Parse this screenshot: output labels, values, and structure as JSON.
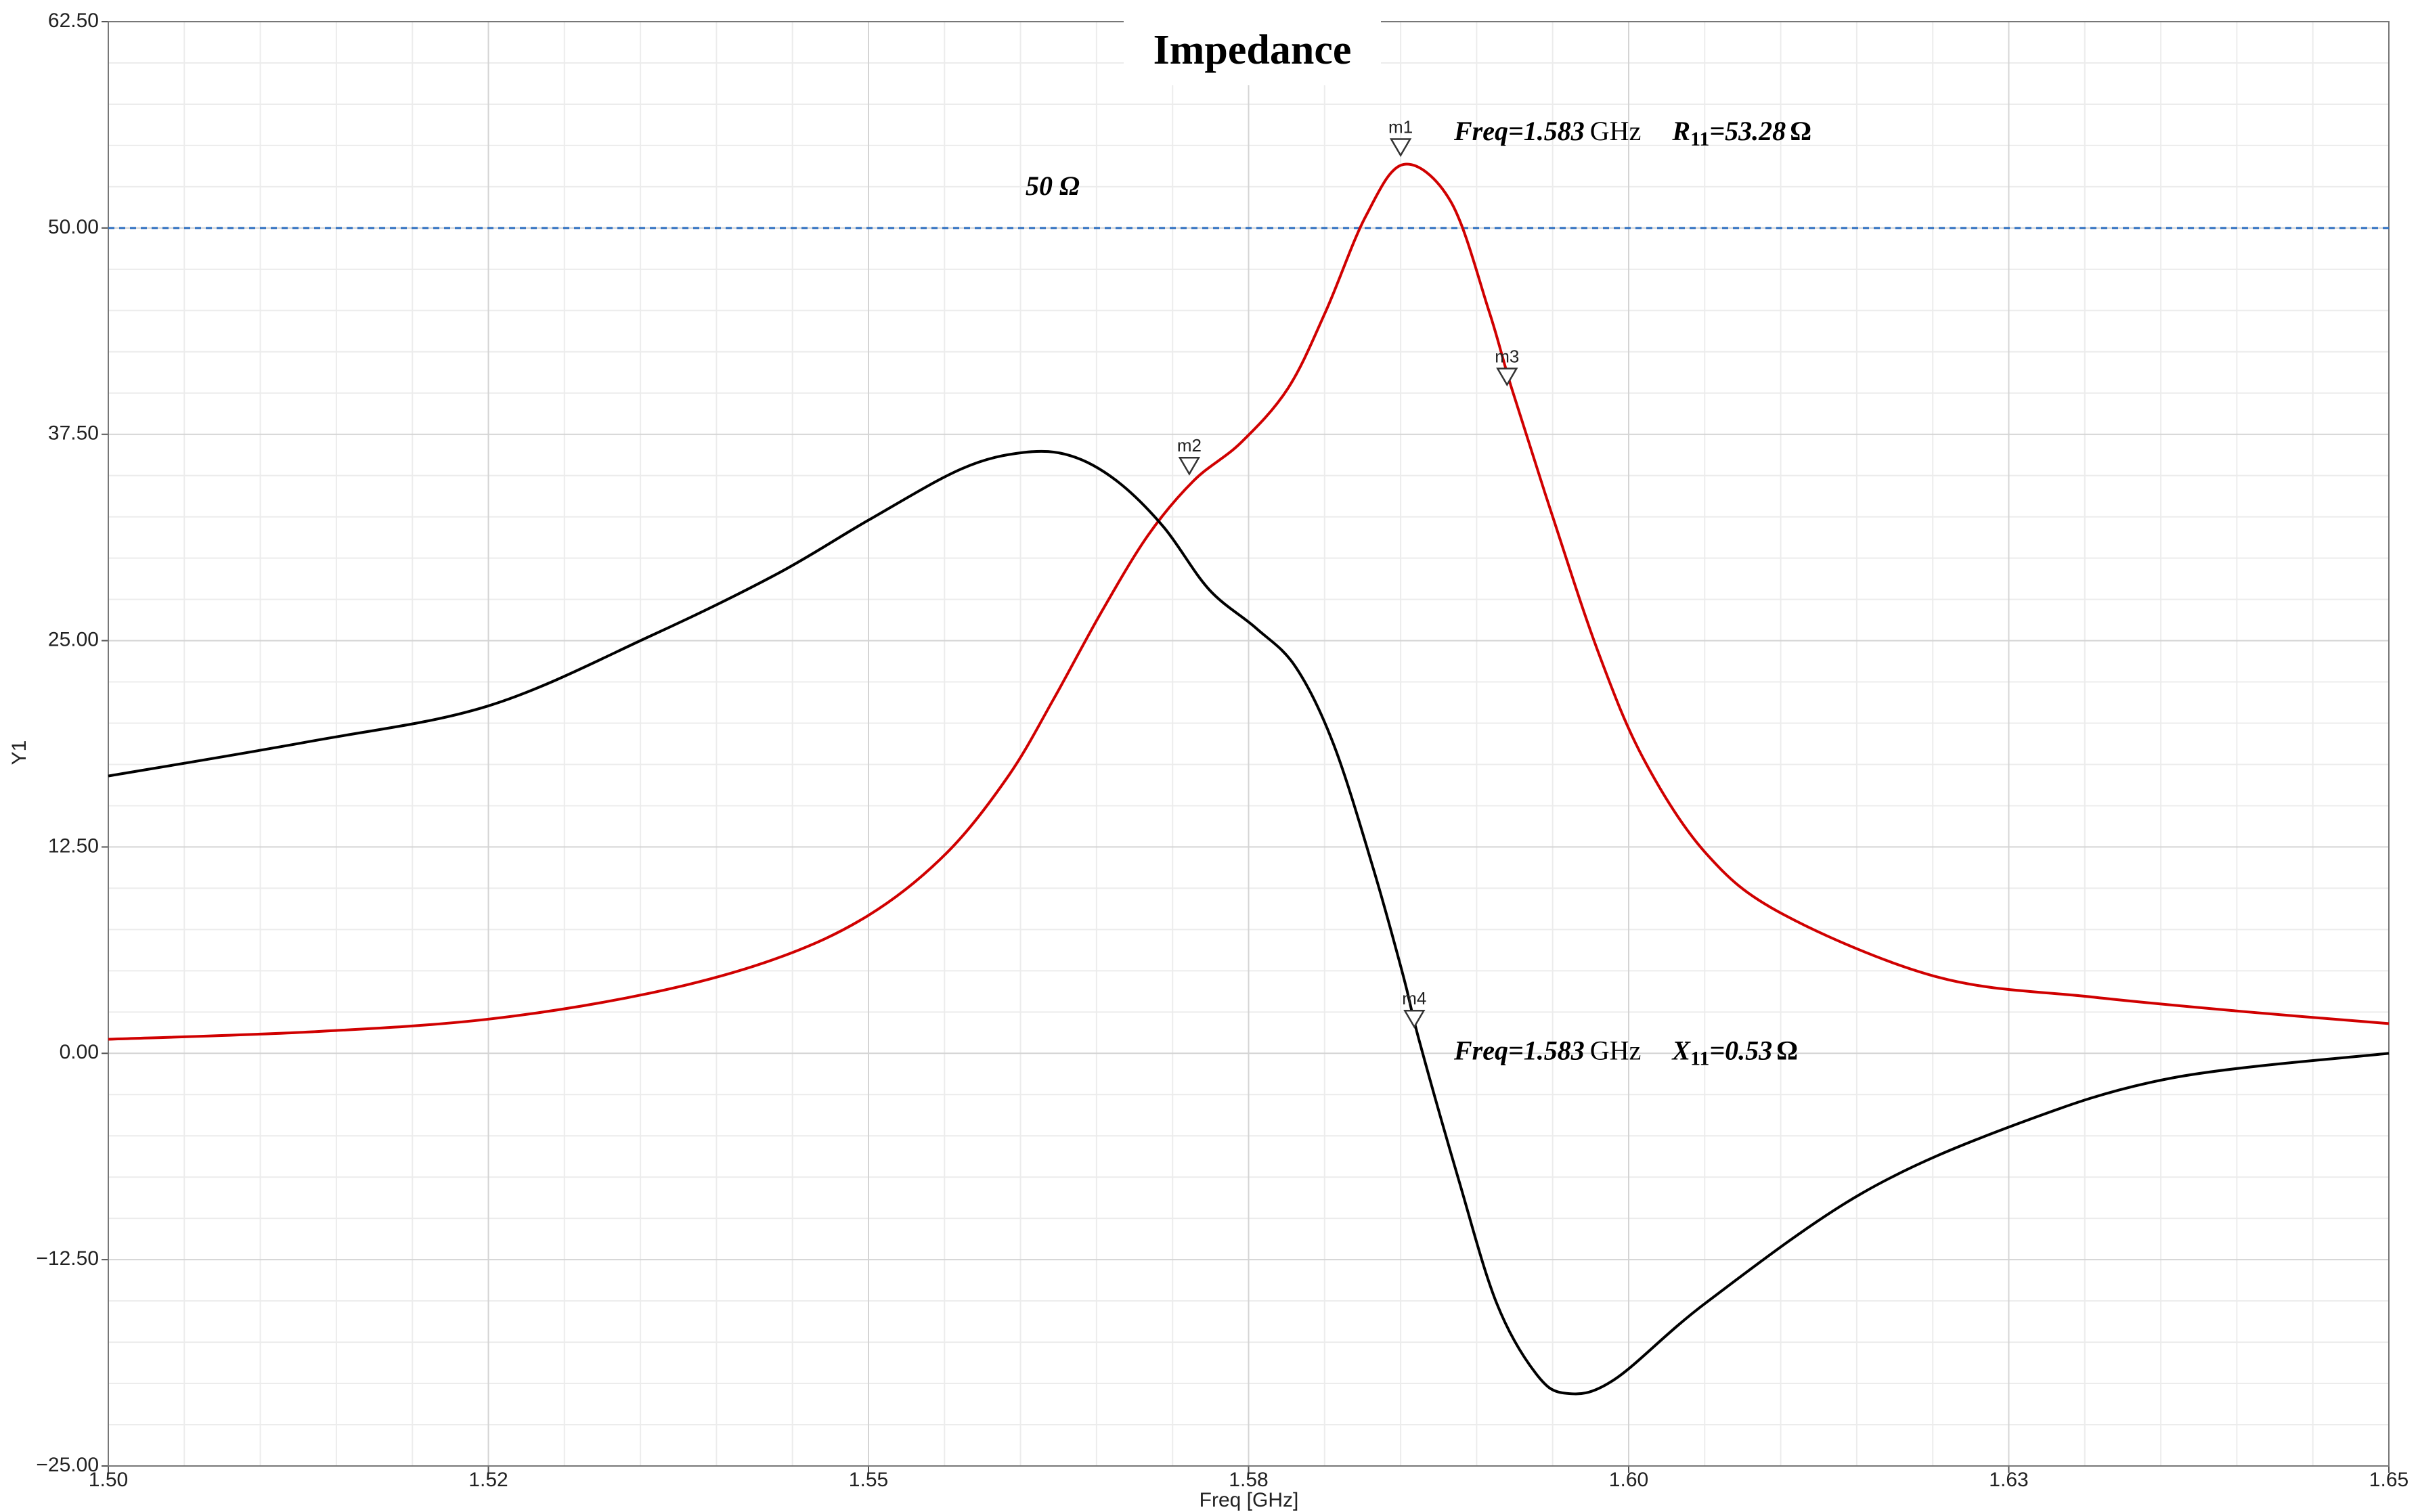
{
  "chart_data": {
    "type": "line",
    "title": "Impedance",
    "xlabel": "Freq [GHz]",
    "ylabel": "Y1",
    "xlim": [
      1.5,
      1.65
    ],
    "ylim": [
      -25,
      62.5
    ],
    "xticks": [
      {
        "value": 1.5,
        "label": "1.50"
      },
      {
        "value": 1.525,
        "label": "1.52"
      },
      {
        "value": 1.55,
        "label": "1.55"
      },
      {
        "value": 1.575,
        "label": "1.58"
      },
      {
        "value": 1.6,
        "label": "1.60"
      },
      {
        "value": 1.625,
        "label": "1.63"
      },
      {
        "value": 1.65,
        "label": "1.65"
      }
    ],
    "yticks": [
      {
        "value": 62.5,
        "label": "62.50"
      },
      {
        "value": 50,
        "label": "50.00"
      },
      {
        "value": 37.5,
        "label": "37.50"
      },
      {
        "value": 25,
        "label": "25.00"
      },
      {
        "value": 12.5,
        "label": "12.50"
      },
      {
        "value": 0,
        "label": "0.00"
      },
      {
        "value": -12.5,
        "label": "−12.50"
      },
      {
        "value": -25,
        "label": "−25.00"
      }
    ],
    "grid": true,
    "minor_divisions": 5,
    "series": [
      {
        "color": "#d00000",
        "x": [
          1.5,
          1.5133,
          1.525,
          1.5357,
          1.5439,
          1.55,
          1.5551,
          1.5592,
          1.5622,
          1.5653,
          1.5684,
          1.5714,
          1.5745,
          1.5776,
          1.5801,
          1.5827,
          1.5852,
          1.5883,
          1.5908,
          1.5923,
          1.5949,
          1.598,
          1.601,
          1.6051,
          1.6102,
          1.6204,
          1.6306,
          1.6408,
          1.65
        ],
        "values": [
          0.85,
          1.3,
          2.07,
          3.66,
          5.73,
          8.36,
          12.1,
          16.8,
          21.5,
          26.7,
          31.4,
          34.7,
          37.0,
          40.3,
          45.0,
          50.7,
          53.85,
          51.6,
          45.0,
          40.3,
          32.8,
          24.3,
          17.8,
          12.1,
          8.4,
          4.6,
          3.4,
          2.5,
          1.8
        ]
      },
      {
        "color": "#000000",
        "x": [
          1.5,
          1.5133,
          1.525,
          1.5357,
          1.5439,
          1.55,
          1.5561,
          1.5602,
          1.5633,
          1.5663,
          1.5694,
          1.5724,
          1.5755,
          1.5781,
          1.5806,
          1.5832,
          1.5852,
          1.5862,
          1.5888,
          1.5913,
          1.5939,
          1.5959,
          1.599,
          1.6051,
          1.6153,
          1.6255,
          1.6357,
          1.65
        ],
        "values": [
          16.8,
          18.9,
          21.05,
          25.3,
          29.0,
          32.3,
          35.4,
          36.4,
          36.2,
          34.7,
          31.9,
          28.1,
          25.75,
          23.4,
          18.7,
          11.2,
          4.6,
          0.85,
          -7.6,
          -15.1,
          -19.4,
          -20.6,
          -19.8,
          -15.1,
          -8.5,
          -4.3,
          -1.5,
          0
        ]
      }
    ],
    "reference_line": {
      "value": 50,
      "label": "50 Ω",
      "color": "#2e6fc0"
    },
    "markers": [
      {
        "name": "m1",
        "x": 1.585,
        "y": 54.4
      },
      {
        "name": "m2",
        "x": 1.5711,
        "y": 35.1
      },
      {
        "name": "m3",
        "x": 1.592,
        "y": 40.5
      },
      {
        "name": "m4",
        "x": 1.5859,
        "y": 1.6
      }
    ],
    "annotations": [
      {
        "freq": "Freq=1.583",
        "unit": "GHz",
        "param": "R",
        "sub": "11",
        "value": "=53.28",
        "ohm": "Ω"
      },
      {
        "freq": "Freq=1.583",
        "unit": "GHz",
        "param": "X",
        "sub": "11",
        "value": "=0.53",
        "ohm": "Ω"
      }
    ]
  }
}
